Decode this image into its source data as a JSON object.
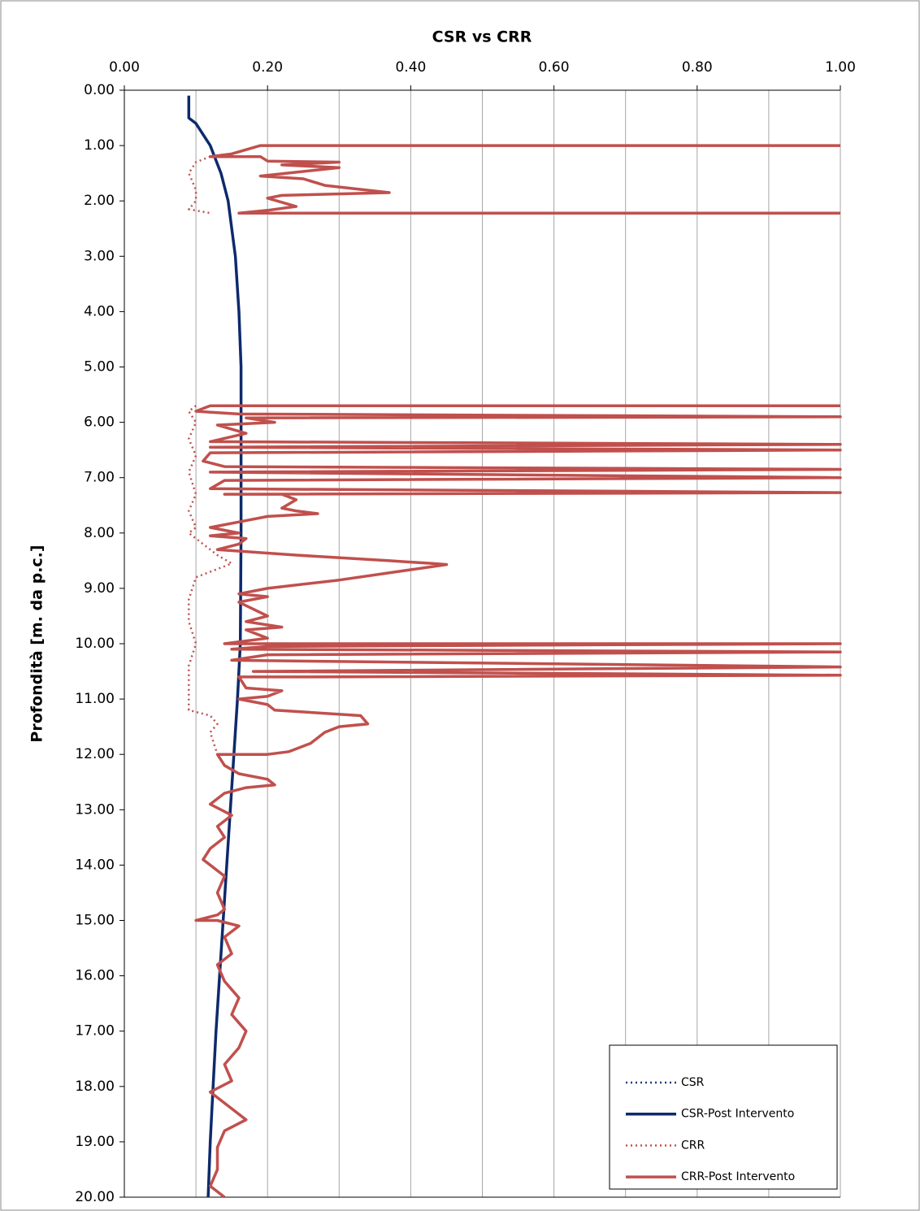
{
  "chart_data": {
    "type": "line",
    "title": "CSR vs CRR",
    "y_label": "Profondità [m. da p.c.]",
    "xlim": [
      0,
      1
    ],
    "ylim": [
      0,
      20
    ],
    "y_inverted": true,
    "x_axis_position": "top",
    "grid": true,
    "xticks": [
      {
        "value": 0,
        "label": "0.00"
      },
      {
        "value": 0.2,
        "label": "0.20"
      },
      {
        "value": 0.4,
        "label": "0.40"
      },
      {
        "value": 0.6,
        "label": "0.60"
      },
      {
        "value": 0.8,
        "label": "0.80"
      },
      {
        "value": 1,
        "label": "1.00"
      }
    ],
    "minor_xticks": [
      0.1,
      0.3,
      0.5,
      0.7,
      0.9
    ],
    "yticks": [
      {
        "value": 0,
        "label": "0.00"
      },
      {
        "value": 1,
        "label": "1.00"
      },
      {
        "value": 2,
        "label": "2.00"
      },
      {
        "value": 3,
        "label": "3.00"
      },
      {
        "value": 4,
        "label": "4.00"
      },
      {
        "value": 5,
        "label": "5.00"
      },
      {
        "value": 6,
        "label": "6.00"
      },
      {
        "value": 7,
        "label": "7.00"
      },
      {
        "value": 8,
        "label": "8.00"
      },
      {
        "value": 9,
        "label": "9.00"
      },
      {
        "value": 10,
        "label": "10.00"
      },
      {
        "value": 11,
        "label": "11.00"
      },
      {
        "value": 12,
        "label": "12.00"
      },
      {
        "value": 13,
        "label": "13.00"
      },
      {
        "value": 14,
        "label": "14.00"
      },
      {
        "value": 15,
        "label": "15.00"
      },
      {
        "value": 16,
        "label": "16.00"
      },
      {
        "value": 17,
        "label": "17.00"
      },
      {
        "value": 18,
        "label": "18.00"
      },
      {
        "value": 19,
        "label": "19.00"
      },
      {
        "value": 20,
        "label": "20.00"
      }
    ],
    "legend": "bottom-right",
    "series": [
      {
        "name": "CSR",
        "color": "#1f3a7a",
        "dash": "dotted",
        "x": [
          0.09,
          0.09,
          0.1,
          0.12,
          0.135,
          0.145,
          0.155,
          0.16,
          0.163,
          0.163,
          0.163,
          0.162,
          0.158,
          0.153,
          0.148,
          0.143,
          0.138,
          0.133,
          0.128,
          0.124,
          0.12,
          0.117
        ],
        "y": [
          0.1,
          0.5,
          0.6,
          1.0,
          1.5,
          2.0,
          3.0,
          4.0,
          5.0,
          6.0,
          8.0,
          10.0,
          11.0,
          12.0,
          13.0,
          14.0,
          15.0,
          16.0,
          17.0,
          18.0,
          19.0,
          20.0
        ]
      },
      {
        "name": "CSR-Post Intervento",
        "color": "#0d2a6b",
        "dash": "solid",
        "x": [
          0.09,
          0.09,
          0.1,
          0.12,
          0.135,
          0.145,
          0.155,
          0.16,
          0.163,
          0.163,
          0.163,
          0.162,
          0.158,
          0.153,
          0.148,
          0.143,
          0.138,
          0.133,
          0.128,
          0.124,
          0.12,
          0.117
        ],
        "y": [
          0.1,
          0.5,
          0.6,
          1.0,
          1.5,
          2.0,
          3.0,
          4.0,
          5.0,
          6.0,
          8.0,
          10.0,
          11.0,
          12.0,
          13.0,
          14.0,
          15.0,
          16.0,
          17.0,
          18.0,
          19.0,
          20.0
        ]
      },
      {
        "name": "CRR",
        "color": "#c0504d",
        "dash": "dotted",
        "x": [
          0.12,
          0.1,
          0.09,
          0.1,
          0.1,
          0.09,
          0.12,
          null,
          0.1,
          0.09,
          0.1,
          0.09,
          0.1,
          0.09,
          0.1,
          0.09,
          0.1,
          0.09,
          0.11,
          0.13,
          0.15,
          0.1,
          0.09,
          0.09,
          0.1,
          0.09,
          0.09,
          0.09,
          0.12,
          0.13,
          0.12,
          0.13
        ],
        "y": [
          1.2,
          1.3,
          1.5,
          1.8,
          2.0,
          2.15,
          2.22,
          null,
          5.7,
          5.8,
          6.0,
          6.3,
          6.6,
          6.9,
          7.3,
          7.6,
          7.9,
          8.0,
          8.2,
          8.4,
          8.55,
          8.8,
          9.2,
          9.6,
          10.0,
          10.4,
          10.8,
          11.2,
          11.3,
          11.45,
          11.6,
          12.0
        ]
      },
      {
        "name": "CRR-Post Intervento",
        "color": "#c0504d",
        "dash": "solid",
        "x": [
          1.0,
          0.19,
          0.15,
          0.12,
          0.19,
          0.2,
          0.3,
          0.22,
          0.3,
          0.19,
          0.25,
          0.28,
          0.37,
          0.22,
          0.2,
          0.24,
          0.2,
          0.16,
          1.0,
          null,
          1.0,
          0.12,
          0.1,
          0.16,
          1.0,
          0.17,
          0.21,
          0.13,
          0.17,
          0.12,
          1.0,
          0.12,
          1.0,
          0.12,
          0.11,
          0.14,
          1.0,
          0.12,
          1.0,
          0.14,
          0.12,
          1.0,
          0.14,
          0.22,
          0.24,
          0.22,
          0.24,
          0.27,
          0.2,
          0.16,
          0.12,
          0.16,
          0.12,
          0.17,
          0.16,
          0.13,
          0.24,
          0.37,
          0.43,
          0.45,
          0.38,
          0.3,
          0.2,
          0.16,
          0.2,
          0.16,
          0.2,
          0.17,
          0.22,
          0.17,
          0.2,
          0.14,
          1.0,
          0.2,
          0.15,
          1.0,
          0.2,
          0.15,
          1.0,
          0.18,
          1.0,
          0.24,
          0.16,
          0.17,
          0.22,
          0.2,
          0.16,
          0.2,
          0.21,
          0.33,
          0.34,
          0.3,
          0.28,
          0.26,
          0.23,
          0.2,
          0.13,
          0.14,
          0.16,
          0.2,
          0.21,
          0.17,
          0.14,
          0.12,
          0.15,
          0.13,
          0.14,
          0.12,
          0.11,
          0.14,
          0.13,
          0.14,
          0.13,
          0.1,
          0.13,
          0.16,
          0.14,
          0.15,
          0.13,
          0.14,
          0.16,
          0.15,
          0.17,
          0.16,
          0.14,
          0.15,
          0.12,
          0.14,
          0.17,
          0.14,
          0.13,
          0.13,
          0.12,
          0.14
        ],
        "y": [
          1.0,
          1.0,
          1.15,
          1.2,
          1.2,
          1.28,
          1.3,
          1.35,
          1.4,
          1.55,
          1.6,
          1.72,
          1.85,
          1.9,
          1.95,
          2.1,
          2.17,
          2.22,
          2.22,
          null,
          5.7,
          5.7,
          5.8,
          5.85,
          5.9,
          5.92,
          6.0,
          6.05,
          6.2,
          6.35,
          6.4,
          6.45,
          6.5,
          6.55,
          6.7,
          6.8,
          6.85,
          6.9,
          7.0,
          7.05,
          7.2,
          7.27,
          7.3,
          7.3,
          7.4,
          7.55,
          7.6,
          7.65,
          7.7,
          7.8,
          7.9,
          8.0,
          8.05,
          8.1,
          8.2,
          8.3,
          8.4,
          8.5,
          8.55,
          8.57,
          8.7,
          8.85,
          9.0,
          9.1,
          9.15,
          9.25,
          9.5,
          9.6,
          9.7,
          9.75,
          9.9,
          10.0,
          10.0,
          10.05,
          10.1,
          10.15,
          10.2,
          10.3,
          10.42,
          10.5,
          10.57,
          10.6,
          10.6,
          10.8,
          10.85,
          10.95,
          11.0,
          11.1,
          11.2,
          11.3,
          11.45,
          11.5,
          11.6,
          11.8,
          11.95,
          12.0,
          12.0,
          12.2,
          12.35,
          12.45,
          12.55,
          12.6,
          12.7,
          12.9,
          13.1,
          13.3,
          13.5,
          13.7,
          13.9,
          14.2,
          14.5,
          14.8,
          14.9,
          15.0,
          15.0,
          15.1,
          15.3,
          15.6,
          15.8,
          16.1,
          16.4,
          16.7,
          17.0,
          17.3,
          17.6,
          17.9,
          18.1,
          18.3,
          18.6,
          18.8,
          19.1,
          19.5,
          19.8,
          20.0
        ]
      }
    ]
  }
}
